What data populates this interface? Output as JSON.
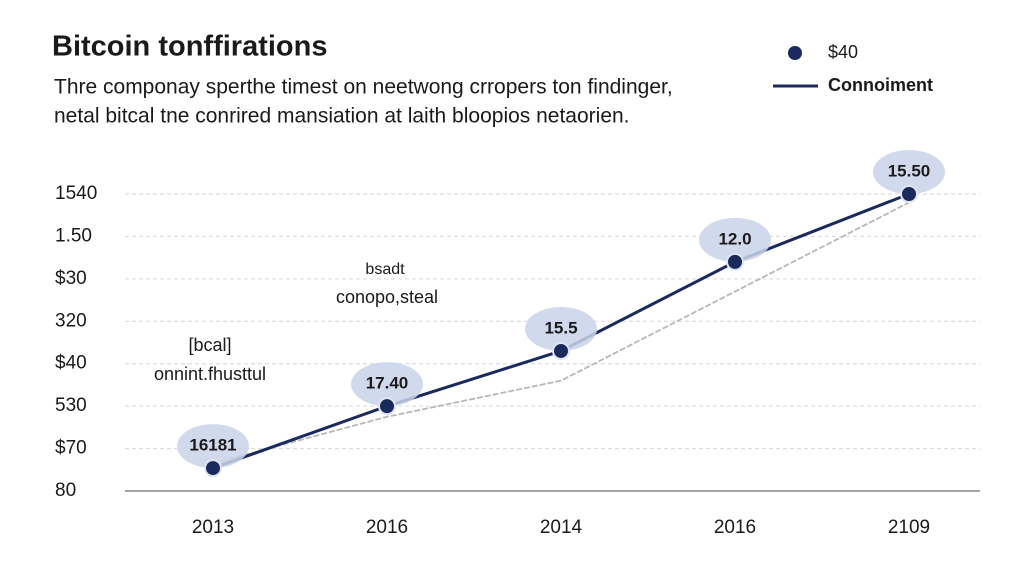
{
  "chart_data": {
    "type": "line",
    "title": "Bitcoin tonffirations",
    "subtitle": [
      "Thre componay sperthe timest on neetwong crropers ton findinger,",
      "netal bitcal tne conrired mansiation at laith bloopios netaorien."
    ],
    "categories": [
      "2013",
      "2016",
      "2014",
      "2016",
      "2109"
    ],
    "series": [
      {
        "name": "Connoiment",
        "color": "#1b2a5c",
        "values": [
          0.54,
          2.0,
          3.3,
          5.4,
          7.0
        ]
      },
      {
        "color": "#b8b8b8",
        "values": [
          0.65,
          1.75,
          2.6,
          4.7,
          6.8
        ]
      }
    ],
    "point_labels": [
      "16181",
      "17.40",
      "15.5",
      "12.0",
      "15.50"
    ],
    "legend": [
      {
        "label": "$40",
        "marker": "dot"
      },
      {
        "label": "Connoiment",
        "marker": "line"
      }
    ],
    "ylim": [
      0,
      7
    ],
    "yticks": [
      {
        "value": 0,
        "label": "80"
      },
      {
        "value": 1,
        "label": "$70"
      },
      {
        "value": 2,
        "label": "530"
      },
      {
        "value": 3,
        "label": "$40"
      },
      {
        "value": 4,
        "label": "320"
      },
      {
        "value": 5,
        "label": "$30"
      },
      {
        "value": 6,
        "label": "1.50"
      },
      {
        "value": 7,
        "label": "1540"
      }
    ],
    "annotations": [
      "bsadt",
      "conopo,steal",
      "[bcal]",
      "onnint.fhusttul"
    ],
    "grid": true
  }
}
